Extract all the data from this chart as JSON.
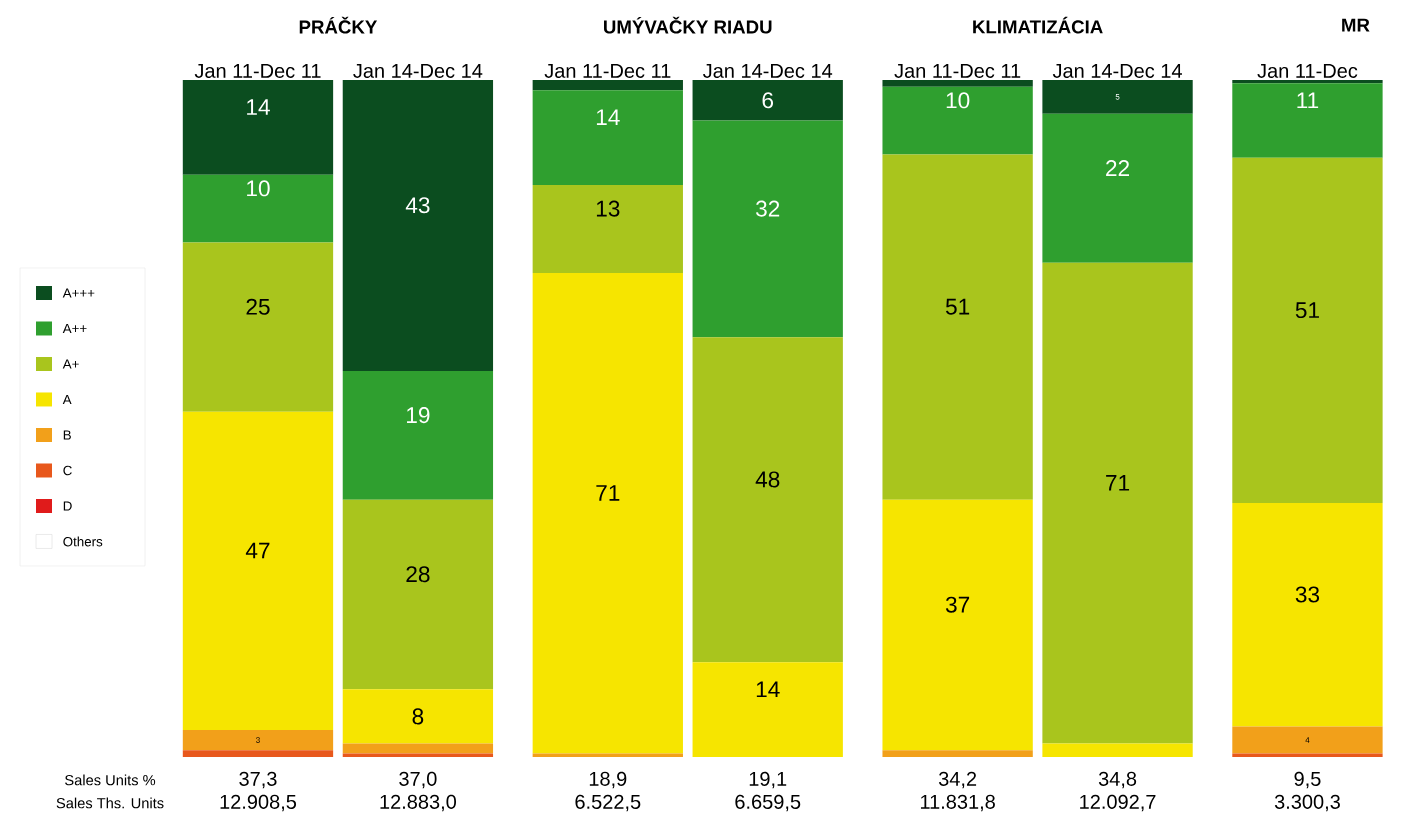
{
  "chart_data": {
    "type": "bar",
    "stacked": true,
    "legend": "left",
    "tick_labels": "x",
    "ylim": [
      0,
      100
    ],
    "categories": [
      "Jan 11-Dec 11",
      "Jan 14-Dec 14",
      "Jan 11-Dec 11",
      "Jan 14-Dec 14",
      "Jan 11-Dec 11",
      "Jan 14-Dec 14",
      "Jan 11-Dec"
    ],
    "series": [
      {
        "name": "Others",
        "color": "#ffffff",
        "values": [
          null,
          null,
          null,
          null,
          null,
          null,
          null
        ]
      },
      {
        "name": "D",
        "color": "#e01b1b",
        "values": [
          null,
          null,
          null,
          null,
          null,
          null,
          null
        ]
      },
      {
        "name": "C",
        "color": "#e8581c",
        "values": [
          1,
          0.5,
          null,
          null,
          null,
          null,
          0.5
        ]
      },
      {
        "name": "B",
        "color": "#f2a01a",
        "values": [
          3,
          1.5,
          0.5,
          null,
          1,
          null,
          4
        ],
        "value_labels": [
          "3",
          null,
          null,
          null,
          null,
          null,
          "4"
        ]
      },
      {
        "name": "A",
        "color": "#f6e500",
        "values": [
          47,
          8,
          71,
          14,
          37,
          2,
          33
        ],
        "value_labels": [
          "47",
          "8",
          "71",
          "14",
          "37",
          null,
          "33"
        ]
      },
      {
        "name": "A+",
        "color": "#a9c51d",
        "values": [
          25,
          28,
          13,
          48,
          51,
          71,
          51
        ],
        "value_labels": [
          "25",
          "28",
          "13",
          "48",
          "51",
          "71",
          "51"
        ]
      },
      {
        "name": "A++",
        "color": "#2f9f2f",
        "values": [
          10,
          19,
          14,
          32,
          10,
          22,
          11
        ],
        "value_labels": [
          "10",
          "19",
          "14",
          "32",
          "10",
          "22",
          "11"
        ]
      },
      {
        "name": "A+++",
        "color": "#0b4d1f",
        "values": [
          14,
          43,
          1.5,
          6,
          1,
          5,
          0.5
        ],
        "value_labels": [
          "14",
          "43",
          null,
          "6",
          null,
          "5",
          null
        ]
      }
    ],
    "annotations": [
      "PRÁČKY",
      "UMÝVAČKY RIADU",
      "KLIMATIZÁCIA",
      "MR",
      "Sales Units %",
      "Sales Ths. Units",
      "37,3",
      "37,0",
      "18,9",
      "19,1",
      "34,2",
      "34,8",
      "9,5",
      "12.908,5",
      "12.883,0",
      "6.522,5",
      "6.659,5",
      "11.831,8",
      "12.092,7",
      "3.300,3"
    ]
  }
}
